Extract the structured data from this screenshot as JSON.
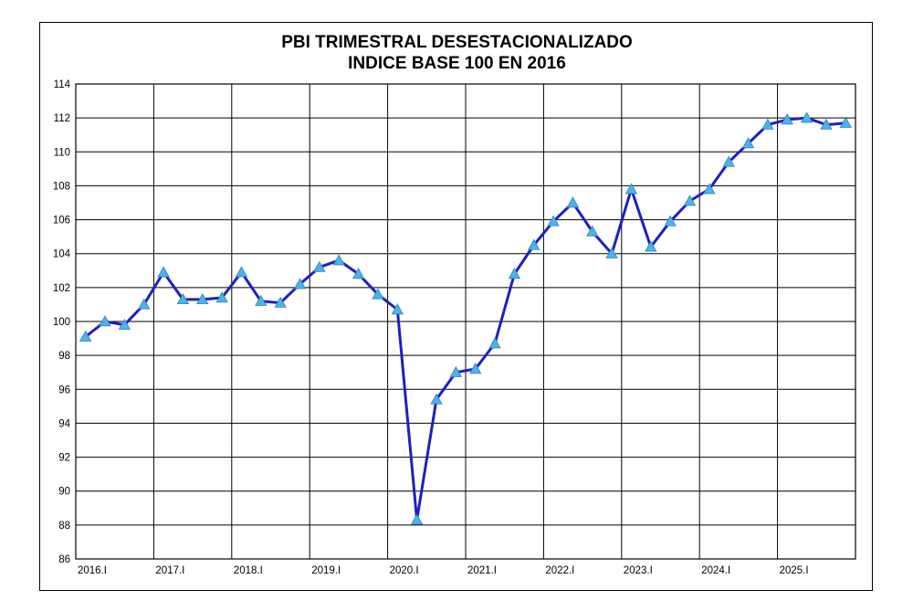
{
  "chart_data": {
    "type": "line",
    "title": "PBI TRIMESTRAL DESESTACIONALIZADO",
    "subtitle": "INDICE BASE 100 EN 2016",
    "xlabel": "",
    "ylabel": "",
    "ylim": [
      86,
      114
    ],
    "y_ticks": [
      "86",
      "88",
      "90",
      "92",
      "94",
      "96",
      "98",
      "100",
      "102",
      "104",
      "106",
      "108",
      "110",
      "112",
      "114"
    ],
    "x_tick_labels": [
      "2016.I",
      "2017.I",
      "2018.I",
      "2019.I",
      "2020.I",
      "2021.I",
      "2022.I",
      "2023.I",
      "2024.I",
      "2025.I"
    ],
    "grid": true,
    "legend": "none",
    "line_color": "#1f1fbf",
    "marker_color": "#4cb3e6",
    "marker": "triangle",
    "x": [
      "2016.I",
      "2016.II",
      "2016.III",
      "2016.IV",
      "2017.I",
      "2017.II",
      "2017.III",
      "2017.IV",
      "2018.I",
      "2018.II",
      "2018.III",
      "2018.IV",
      "2019.I",
      "2019.II",
      "2019.III",
      "2019.IV",
      "2020.I",
      "2020.II",
      "2020.III",
      "2020.IV",
      "2021.I",
      "2021.II",
      "2021.III",
      "2021.IV",
      "2022.I",
      "2022.II",
      "2022.III",
      "2022.IV",
      "2023.I",
      "2023.II",
      "2023.III",
      "2023.IV",
      "2024.I",
      "2024.II",
      "2024.III",
      "2024.IV",
      "2025.I",
      "2025.II",
      "2025.III",
      "2025.IV"
    ],
    "values": [
      99.1,
      100.0,
      99.8,
      101.0,
      102.9,
      101.3,
      101.3,
      101.4,
      102.9,
      101.2,
      101.1,
      102.2,
      103.2,
      103.6,
      102.8,
      101.6,
      100.7,
      88.3,
      95.4,
      97.0,
      97.2,
      98.7,
      102.8,
      104.5,
      105.9,
      107.0,
      105.3,
      104.0,
      107.8,
      104.4,
      105.9,
      107.1,
      107.8,
      109.4,
      110.5,
      111.6,
      111.9,
      112.0,
      111.6,
      111.7
    ]
  }
}
